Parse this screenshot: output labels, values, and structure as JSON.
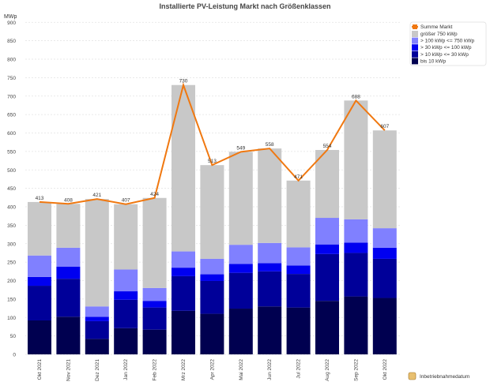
{
  "chart_data": {
    "type": "bar",
    "stacked": true,
    "title": "Installierte PV-Leistung Markt nach Größenklassen",
    "ylabel": "MWp",
    "xlabel": "Inbetriebnahmedatum",
    "ylim": [
      0,
      900
    ],
    "yticks": [
      0,
      50,
      100,
      150,
      200,
      250,
      300,
      350,
      400,
      450,
      500,
      550,
      600,
      650,
      700,
      750,
      800,
      850,
      900
    ],
    "grid": true,
    "legend_position": "top-right",
    "categories": [
      "Okt 2021",
      "Nov 2021",
      "Dez 2021",
      "Jan 2022",
      "Feb 2022",
      "Mrz 2022",
      "Apr 2022",
      "Mai 2022",
      "Jun 2022",
      "Jul 2022",
      "Aug 2022",
      "Sep 2022",
      "Okt 2022"
    ],
    "series": [
      {
        "name": "bis 10 kWp",
        "color": "#000050",
        "values": [
          92,
          102,
          42,
          71,
          67,
          118,
          110,
          124,
          130,
          127,
          145,
          157,
          153
        ]
      },
      {
        "name": "> 10 kWp <= 30 kWp",
        "color": "#000099",
        "values": [
          94,
          103,
          48,
          77,
          60,
          94,
          89,
          97,
          95,
          91,
          127,
          118,
          106
        ]
      },
      {
        "name": "> 30 kWp <= 100 kWp",
        "color": "#0000f0",
        "values": [
          24,
          33,
          12,
          23,
          18,
          23,
          18,
          24,
          22,
          23,
          26,
          28,
          30
        ]
      },
      {
        "name": "> 100 kWp <= 750 kWp",
        "color": "#8080ff",
        "values": [
          58,
          51,
          28,
          59,
          35,
          44,
          42,
          52,
          55,
          49,
          72,
          63,
          53
        ]
      },
      {
        "name": "größer 750 kWp",
        "color": "#c8c8c8",
        "values": [
          145,
          119,
          291,
          177,
          244,
          451,
          254,
          252,
          256,
          181,
          184,
          322,
          265
        ]
      }
    ],
    "line": {
      "name": "Summe Markt",
      "color": "#f07810",
      "values": [
        413,
        408,
        421,
        407,
        424,
        730,
        513,
        549,
        558,
        471,
        554,
        688,
        607
      ]
    }
  }
}
